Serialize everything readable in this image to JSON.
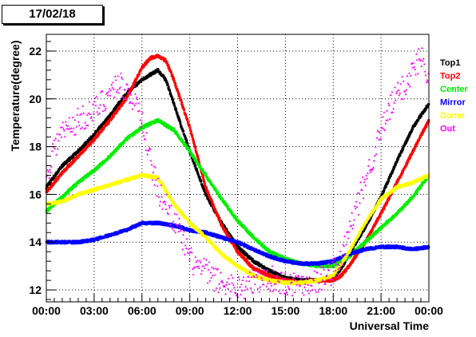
{
  "chart_data": {
    "type": "scatter",
    "title": "17/02/18",
    "xlabel": "Universal Time",
    "ylabel": "Temperature(degree)",
    "xlim": [
      0,
      24
    ],
    "ylim": [
      11.5,
      22.7
    ],
    "x_ticks": [
      0,
      3,
      6,
      9,
      12,
      15,
      18,
      21,
      24
    ],
    "x_tick_labels": [
      "00:00",
      "03:00",
      "06:00",
      "09:00",
      "12:00",
      "15:00",
      "18:00",
      "21:00",
      "00:00"
    ],
    "y_ticks": [
      12,
      14,
      16,
      18,
      20,
      22
    ],
    "y_tick_labels": [
      "12",
      "14",
      "16",
      "18",
      "20",
      "22"
    ],
    "grid": true,
    "legend_position": "right",
    "series": [
      {
        "name": "Top1",
        "color": "#000000",
        "x": [
          0,
          1,
          2,
          3,
          4,
          5,
          6,
          6.5,
          7,
          7.5,
          8,
          9,
          10,
          11,
          12,
          13,
          14,
          15,
          16,
          17,
          18,
          18.5,
          19,
          20,
          21,
          22,
          23,
          24
        ],
        "y": [
          16.3,
          17.2,
          17.8,
          18.5,
          19.3,
          20.2,
          20.8,
          21.0,
          21.2,
          20.8,
          19.8,
          17.8,
          16.0,
          14.8,
          13.8,
          13.2,
          12.8,
          12.5,
          12.4,
          12.4,
          12.5,
          12.9,
          13.5,
          14.6,
          15.9,
          17.4,
          18.8,
          19.8
        ]
      },
      {
        "name": "Top2",
        "color": "#ff0000",
        "x": [
          0,
          1,
          2,
          3,
          4,
          5,
          6,
          6.5,
          7,
          7.5,
          8,
          9,
          10,
          11,
          12,
          13,
          14,
          15,
          16,
          17,
          18,
          18.5,
          19,
          20,
          21,
          22,
          23,
          24
        ],
        "y": [
          16.1,
          16.9,
          17.6,
          18.3,
          19.1,
          20.0,
          21.3,
          21.7,
          21.8,
          21.6,
          20.8,
          18.8,
          16.3,
          14.7,
          13.6,
          12.9,
          12.6,
          12.4,
          12.3,
          12.4,
          12.4,
          12.6,
          13.0,
          14.0,
          15.2,
          16.5,
          17.8,
          19.1
        ]
      },
      {
        "name": "Center",
        "color": "#00ee00",
        "x": [
          0,
          1,
          2,
          3,
          4,
          5,
          6,
          7,
          8,
          9,
          10,
          11,
          12,
          13,
          14,
          15,
          16,
          17,
          18,
          19,
          20,
          21,
          22,
          23,
          24
        ],
        "y": [
          15.3,
          15.9,
          16.5,
          17.0,
          17.6,
          18.3,
          18.8,
          19.1,
          18.7,
          17.8,
          16.8,
          15.8,
          14.9,
          14.2,
          13.6,
          13.3,
          13.1,
          13.0,
          13.0,
          13.4,
          14.0,
          14.6,
          15.2,
          15.9,
          16.8
        ]
      },
      {
        "name": "Mirror",
        "color": "#0000ff",
        "x": [
          0,
          1,
          2,
          3,
          4,
          5,
          6,
          7,
          8,
          9,
          10,
          11,
          12,
          13,
          14,
          15,
          16,
          17,
          18,
          19,
          20,
          21,
          22,
          23,
          24
        ],
        "y": [
          14.0,
          14.0,
          14.0,
          14.1,
          14.3,
          14.5,
          14.8,
          14.8,
          14.7,
          14.5,
          14.4,
          14.2,
          14.0,
          13.7,
          13.4,
          13.2,
          13.1,
          13.1,
          13.2,
          13.5,
          13.7,
          13.8,
          13.8,
          13.7,
          13.8
        ]
      },
      {
        "name": "Dome",
        "color": "#ffff00",
        "x": [
          0,
          1,
          2,
          3,
          4,
          5,
          6,
          7,
          8,
          9,
          10,
          11,
          12,
          13,
          14,
          15,
          16,
          17,
          18,
          19,
          20,
          21,
          22,
          23,
          24
        ],
        "y": [
          15.6,
          15.7,
          16.0,
          16.2,
          16.4,
          16.6,
          16.8,
          16.7,
          15.6,
          14.8,
          14.2,
          13.5,
          13.0,
          12.6,
          12.4,
          12.3,
          12.3,
          12.4,
          12.6,
          13.6,
          14.8,
          15.8,
          16.3,
          16.5,
          16.8
        ]
      },
      {
        "name": "Out",
        "color": "#ff00ff",
        "x": [
          0,
          0.5,
          1,
          2,
          3,
          4,
          4.5,
          5,
          5.5,
          6,
          6.5,
          7,
          7.5,
          8,
          8.5,
          9,
          9.5,
          10,
          10.5,
          11,
          11.5,
          12,
          13,
          14,
          15,
          16,
          17,
          18,
          18.5,
          19,
          19.5,
          20,
          20.5,
          21,
          21.5,
          22,
          22.5,
          23,
          23.5,
          24
        ],
        "y": [
          16.8,
          18.0,
          18.6,
          19.1,
          19.5,
          20.3,
          20.7,
          20.4,
          20.0,
          19.2,
          17.5,
          16.2,
          15.6,
          15.0,
          14.2,
          13.3,
          13.0,
          12.8,
          12.5,
          12.3,
          12.2,
          12.1,
          12.3,
          12.5,
          12.3,
          12.3,
          12.4,
          12.8,
          13.2,
          14.5,
          15.5,
          16.6,
          17.6,
          18.6,
          19.5,
          20.2,
          20.6,
          21.2,
          21.8,
          21.0
        ]
      }
    ]
  }
}
